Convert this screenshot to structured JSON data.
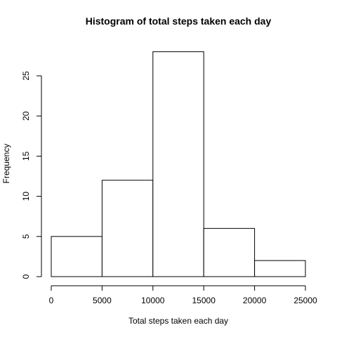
{
  "chart_data": {
    "type": "bar",
    "title": "Histogram of total steps taken each day",
    "xlabel": "Total steps taken each day",
    "ylabel": "Frequency",
    "bins": [
      {
        "start": 0,
        "end": 5000,
        "value": 5
      },
      {
        "start": 5000,
        "end": 10000,
        "value": 12
      },
      {
        "start": 10000,
        "end": 15000,
        "value": 28
      },
      {
        "start": 15000,
        "end": 20000,
        "value": 6
      },
      {
        "start": 20000,
        "end": 25000,
        "value": 2
      }
    ],
    "xlim": [
      0,
      25000
    ],
    "ylim": [
      0,
      28
    ],
    "xticks": [
      0,
      5000,
      10000,
      15000,
      20000,
      25000
    ],
    "xtick_labels": [
      "0",
      "5000",
      "10000",
      "15000",
      "20000",
      "25000"
    ],
    "yticks": [
      0,
      5,
      10,
      15,
      20,
      25
    ],
    "ytick_labels": [
      "0",
      "5",
      "10",
      "15",
      "20",
      "25"
    ],
    "bar_color": "#ffffff",
    "edge_color": "#000000",
    "grid": false,
    "legend": "none"
  }
}
